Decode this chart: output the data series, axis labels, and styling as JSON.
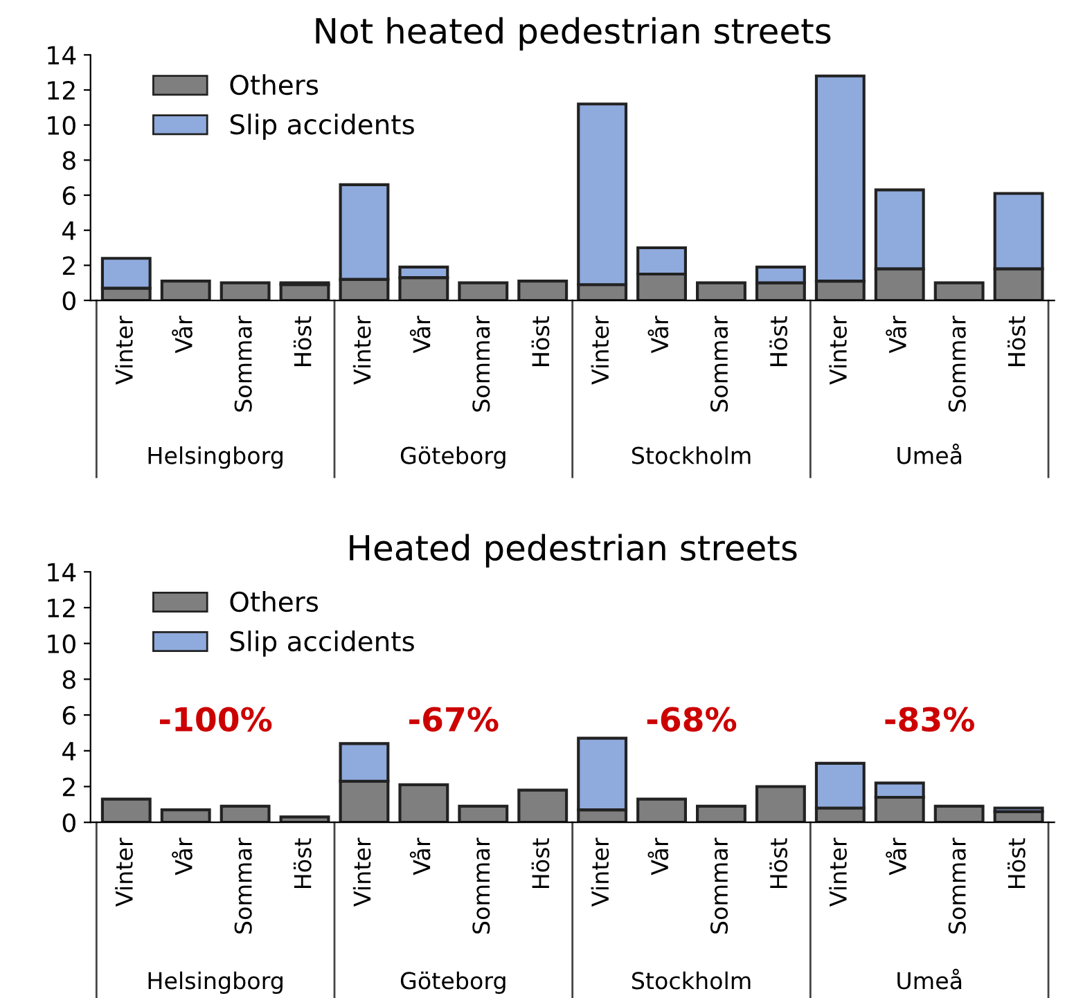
{
  "chart_data": [
    {
      "type": "bar",
      "title": "Not heated pedestrian streets",
      "stacked": true,
      "legend": "top left",
      "categories": [
        "Vinter",
        "Vår",
        "Sommar",
        "Höst",
        "Vinter",
        "Vår",
        "Sommar",
        "Höst",
        "Vinter",
        "Vår",
        "Sommar",
        "Höst",
        "Vinter",
        "Vår",
        "Sommar",
        "Höst"
      ],
      "series": [
        {
          "name": "Others",
          "color": "#7f7f7f",
          "values": [
            0.7,
            1.1,
            1.0,
            0.9,
            1.2,
            1.3,
            1.0,
            1.1,
            0.9,
            1.5,
            1.0,
            1.0,
            1.1,
            1.8,
            1.0,
            1.8
          ]
        },
        {
          "name": "Slip accidents",
          "color": "#8faadc",
          "values": [
            1.7,
            null,
            null,
            0.1,
            5.4,
            0.6,
            null,
            null,
            10.3,
            1.5,
            null,
            0.9,
            11.7,
            4.5,
            null,
            4.3
          ]
        }
      ],
      "ylim": [
        0,
        14
      ],
      "yticks": [
        0,
        2,
        4,
        6,
        8,
        10,
        12,
        14
      ],
      "grid": false,
      "annotations": [
        "Helsingborg",
        "Göteborg",
        "Stockholm",
        "Umeå"
      ]
    },
    {
      "type": "bar",
      "title": "Heated pedestrian streets",
      "stacked": true,
      "legend": "top left",
      "categories": [
        "Vinter",
        "Vår",
        "Sommar",
        "Höst",
        "Vinter",
        "Vår",
        "Sommar",
        "Höst",
        "Vinter",
        "Vår",
        "Sommar",
        "Höst",
        "Vinter",
        "Vår",
        "Sommar",
        "Höst"
      ],
      "series": [
        {
          "name": "Others",
          "color": "#7f7f7f",
          "values": [
            1.3,
            0.7,
            0.9,
            0.3,
            2.3,
            2.1,
            0.9,
            1.8,
            0.7,
            1.3,
            0.9,
            2.0,
            0.8,
            1.4,
            0.9,
            0.6
          ]
        },
        {
          "name": "Slip accidents",
          "color": "#8faadc",
          "values": [
            null,
            null,
            null,
            null,
            2.1,
            null,
            null,
            null,
            4.0,
            null,
            null,
            null,
            2.5,
            0.8,
            null,
            0.2
          ]
        }
      ],
      "ylim": [
        0,
        14
      ],
      "yticks": [
        0,
        2,
        4,
        6,
        8,
        10,
        12,
        14
      ],
      "grid": false,
      "annotations": [
        "Helsingborg",
        "Göteborg",
        "Stockholm",
        "Umeå",
        "-100%",
        "-67%",
        "-68%",
        "-83%"
      ]
    }
  ]
}
